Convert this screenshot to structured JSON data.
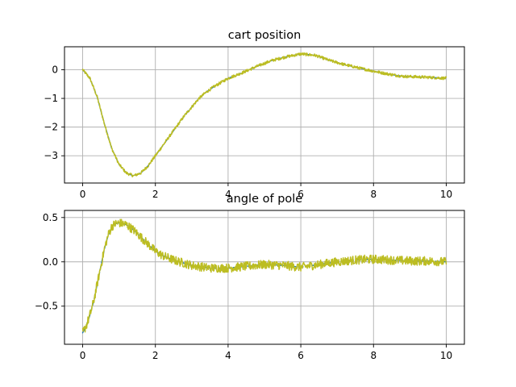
{
  "chart_data": [
    {
      "type": "line",
      "title": "cart position",
      "xlabel": "",
      "ylabel": "",
      "xlim": [
        -0.5,
        10.5
      ],
      "ylim": [
        -3.95,
        0.8
      ],
      "xticks": [
        0,
        2,
        4,
        6,
        8,
        10
      ],
      "xtick_labels": [
        "0",
        "2",
        "4",
        "6",
        "8",
        "10"
      ],
      "yticks": [
        0,
        -1,
        -2,
        -3
      ],
      "ytick_labels": [
        "0",
        "−1",
        "−2",
        "−3"
      ],
      "grid": true,
      "series": [
        {
          "color": "#1f77b4",
          "style": "dashed",
          "x": [
            0,
            0.2,
            0.4,
            0.6,
            0.8,
            1.0,
            1.2,
            1.4,
            1.6,
            1.8,
            2.0,
            2.2,
            2.4,
            2.6,
            2.8,
            3.0,
            3.2,
            3.4,
            3.6,
            3.8,
            4.0,
            4.4,
            4.8,
            5.2,
            5.6,
            6.0,
            6.4,
            6.8,
            7.2,
            7.6,
            8.0,
            8.4,
            8.8,
            9.2,
            9.6,
            10.0
          ],
          "y": [
            0.0,
            -0.3,
            -0.95,
            -1.9,
            -2.75,
            -3.3,
            -3.6,
            -3.7,
            -3.6,
            -3.35,
            -3.0,
            -2.65,
            -2.3,
            -1.95,
            -1.6,
            -1.3,
            -1.0,
            -0.78,
            -0.6,
            -0.45,
            -0.3,
            -0.1,
            0.12,
            0.32,
            0.45,
            0.55,
            0.5,
            0.32,
            0.18,
            0.06,
            -0.05,
            -0.15,
            -0.23,
            -0.25,
            -0.27,
            -0.3
          ]
        },
        {
          "color": "#bcbd22",
          "style": "noisy",
          "x": [
            0,
            0.2,
            0.4,
            0.6,
            0.8,
            1.0,
            1.2,
            1.4,
            1.6,
            1.8,
            2.0,
            2.2,
            2.4,
            2.6,
            2.8,
            3.0,
            3.2,
            3.4,
            3.6,
            3.8,
            4.0,
            4.4,
            4.8,
            5.2,
            5.6,
            6.0,
            6.4,
            6.8,
            7.2,
            7.6,
            8.0,
            8.4,
            8.8,
            9.2,
            9.6,
            10.0
          ],
          "y": [
            0.0,
            -0.3,
            -0.95,
            -1.9,
            -2.75,
            -3.3,
            -3.6,
            -3.7,
            -3.6,
            -3.35,
            -3.0,
            -2.65,
            -2.3,
            -1.95,
            -1.6,
            -1.3,
            -1.0,
            -0.78,
            -0.6,
            -0.45,
            -0.3,
            -0.1,
            0.12,
            0.32,
            0.45,
            0.55,
            0.5,
            0.32,
            0.18,
            0.06,
            -0.05,
            -0.15,
            -0.23,
            -0.25,
            -0.27,
            -0.3
          ],
          "noise_amplitude": 0.05
        }
      ]
    },
    {
      "type": "line",
      "title": "angle of pole",
      "xlabel": "",
      "ylabel": "",
      "xlim": [
        -0.5,
        10.5
      ],
      "ylim": [
        -0.93,
        0.58
      ],
      "xticks": [
        0,
        2,
        4,
        6,
        8,
        10
      ],
      "xtick_labels": [
        "0",
        "2",
        "4",
        "6",
        "8",
        "10"
      ],
      "yticks": [
        0.5,
        0.0,
        -0.5
      ],
      "ytick_labels": [
        "0.5",
        "0.0",
        "−0.5"
      ],
      "grid": true,
      "series": [
        {
          "color": "#1f77b4",
          "style": "dashed",
          "x": [
            0,
            0.1,
            0.2,
            0.3,
            0.4,
            0.5,
            0.6,
            0.7,
            0.8,
            0.9,
            1.0,
            1.2,
            1.4,
            1.6,
            1.8,
            2.0,
            2.2,
            2.5,
            3.0,
            3.5,
            4.0,
            4.5,
            5.0,
            5.5,
            6.0,
            6.5,
            7.0,
            7.5,
            8.0,
            8.5,
            9.0,
            9.5,
            10.0
          ],
          "y": [
            -0.8,
            -0.72,
            -0.6,
            -0.45,
            -0.25,
            -0.05,
            0.15,
            0.3,
            0.4,
            0.43,
            0.44,
            0.42,
            0.36,
            0.28,
            0.2,
            0.12,
            0.07,
            0.02,
            -0.04,
            -0.07,
            -0.07,
            -0.05,
            -0.03,
            -0.04,
            -0.06,
            -0.03,
            0.0,
            0.02,
            0.03,
            0.02,
            0.01,
            0.01,
            0.0
          ]
        },
        {
          "color": "#bcbd22",
          "style": "noisy",
          "x": [
            0,
            0.1,
            0.2,
            0.3,
            0.4,
            0.5,
            0.6,
            0.7,
            0.8,
            0.9,
            1.0,
            1.2,
            1.4,
            1.6,
            1.8,
            2.0,
            2.2,
            2.5,
            3.0,
            3.5,
            4.0,
            4.5,
            5.0,
            5.5,
            6.0,
            6.5,
            7.0,
            7.5,
            8.0,
            8.5,
            9.0,
            9.5,
            10.0
          ],
          "y": [
            -0.8,
            -0.72,
            -0.6,
            -0.45,
            -0.25,
            -0.05,
            0.15,
            0.3,
            0.4,
            0.43,
            0.44,
            0.42,
            0.36,
            0.28,
            0.2,
            0.12,
            0.07,
            0.02,
            -0.04,
            -0.07,
            -0.07,
            -0.05,
            -0.03,
            -0.04,
            -0.06,
            -0.03,
            0.0,
            0.02,
            0.03,
            0.02,
            0.01,
            0.01,
            0.0
          ],
          "noise_amplitude": 0.05
        }
      ]
    }
  ]
}
